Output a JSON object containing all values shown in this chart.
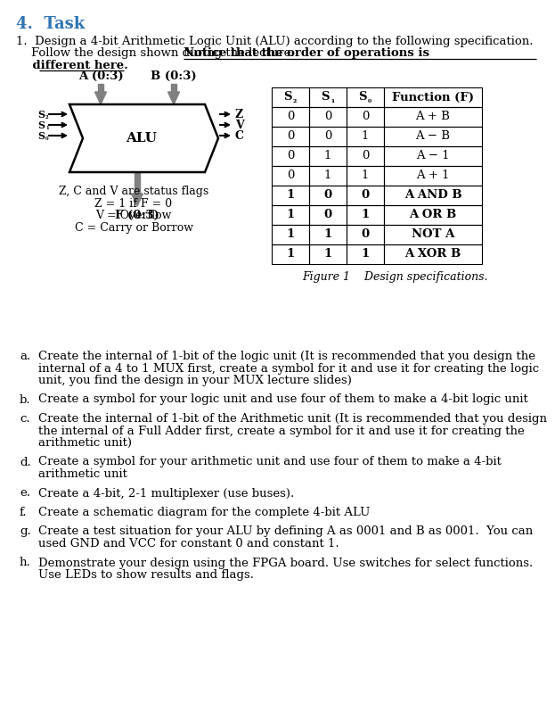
{
  "title": "4.  Task",
  "title_color": "#2E74B5",
  "bg_color": "#ffffff",
  "table_headers": [
    "S₂",
    "S₁",
    "S₀",
    "Function (F)"
  ],
  "table_rows": [
    [
      "0",
      "0",
      "0",
      "A + B"
    ],
    [
      "0",
      "0",
      "1",
      "A − B"
    ],
    [
      "0",
      "1",
      "0",
      "A − 1"
    ],
    [
      "0",
      "1",
      "1",
      "A + 1"
    ],
    [
      "1",
      "0",
      "0",
      "A AND B"
    ],
    [
      "1",
      "0",
      "1",
      "A OR B"
    ],
    [
      "1",
      "1",
      "0",
      "NOT A"
    ],
    [
      "1",
      "1",
      "1",
      "A XOR B"
    ]
  ],
  "figure_caption": "Figure 1    Design specifications.",
  "items": [
    {
      "label": "a.",
      "text": "Create the internal of 1-bit of the logic unit (It is recommended that you design the\ninternal of a 4 to 1 MUX first, create a symbol for it and use it for creating the logic\nunit, you find the design in your MUX lecture slides)"
    },
    {
      "label": "b.",
      "text": "Create a symbol for your logic unit and use four of them to make a 4-bit logic unit"
    },
    {
      "label": "c.",
      "text": "Create the internal of 1-bit of the Arithmetic unit (It is recommended that you design\nthe internal of a Full Adder first, create a symbol for it and use it for creating the\narithmetic unit)"
    },
    {
      "label": "d.",
      "text": "Create a symbol for your arithmetic unit and use four of them to make a 4-bit\narithmetic unit"
    },
    {
      "label": "e.",
      "text": "Create a 4-bit, 2-1 multiplexer (use buses)."
    },
    {
      "label": "f.",
      "text": "Create a schematic diagram for the complete 4-bit ALU"
    },
    {
      "label": "g.",
      "text": "Create a test situation for your ALU by defining A as 0001 and B as 0001.  You can\nused GND and VCC for constant 0 and constant 1."
    },
    {
      "label": "h.",
      "text": "Demonstrate your design using the FPGA board. Use switches for select functions.\nUse LEDs to show results and flags."
    }
  ],
  "alu_color": "#808080",
  "arrow_color": "#808080"
}
